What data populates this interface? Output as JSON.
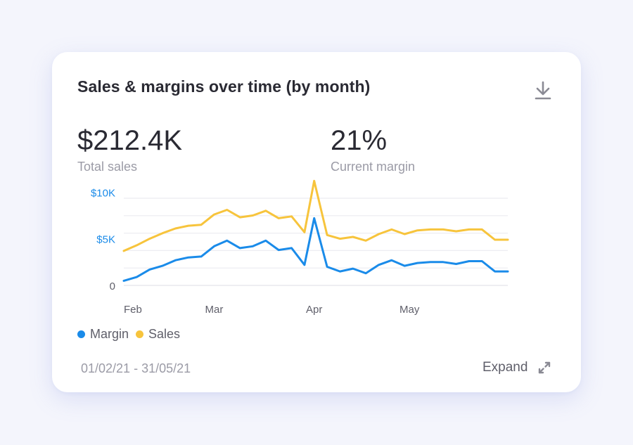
{
  "card": {
    "title": "Sales & margins over time (by month)",
    "download_icon": "download-icon",
    "expand_icon": "expand-arrows-icon",
    "expand_label": "Expand",
    "date_range": "01/02/21 - 31/05/21"
  },
  "stats": {
    "total_sales": {
      "value": "$212.4K",
      "label": "Total sales"
    },
    "current_margin": {
      "value": "21%",
      "label": "Current margin"
    }
  },
  "chart_data": {
    "type": "line",
    "x": [
      "2021-02-01",
      "2021-02-05",
      "2021-02-09",
      "2021-02-13",
      "2021-02-17",
      "2021-02-21",
      "2021-02-25",
      "2021-03-01",
      "2021-03-05",
      "2021-03-09",
      "2021-03-13",
      "2021-03-17",
      "2021-03-21",
      "2021-03-25",
      "2021-03-29",
      "2021-04-01",
      "2021-04-05",
      "2021-04-09",
      "2021-04-13",
      "2021-04-17",
      "2021-04-21",
      "2021-04-25",
      "2021-04-29",
      "2021-05-03",
      "2021-05-07",
      "2021-05-11",
      "2021-05-15",
      "2021-05-19",
      "2021-05-23",
      "2021-05-27",
      "2021-05-31"
    ],
    "x_ticks": [
      "Feb",
      "Mar",
      "Apr",
      "May"
    ],
    "y_ticks": [
      "0",
      "$5K",
      "$10K"
    ],
    "ylim": [
      0,
      11000
    ],
    "grid": true,
    "legend_position": "bottom-left",
    "series": [
      {
        "name": "Sales",
        "color": "#f7c43c",
        "values": [
          3700,
          4300,
          5000,
          5600,
          6100,
          6400,
          6500,
          7600,
          8100,
          7300,
          7500,
          8000,
          7200,
          7400,
          5700,
          11200,
          5400,
          5000,
          5200,
          4800,
          5500,
          6000,
          5500,
          5900,
          6000,
          6000,
          5800,
          6000,
          6000,
          4900,
          4900
        ]
      },
      {
        "name": "Margin",
        "color": "#1a8be9",
        "values": [
          500,
          900,
          1700,
          2100,
          2700,
          3000,
          3100,
          4200,
          4800,
          4000,
          4200,
          4800,
          3800,
          4000,
          2200,
          7200,
          2000,
          1500,
          1800,
          1300,
          2200,
          2700,
          2100,
          2400,
          2500,
          2500,
          2300,
          2600,
          2600,
          1500,
          1500
        ]
      }
    ]
  }
}
